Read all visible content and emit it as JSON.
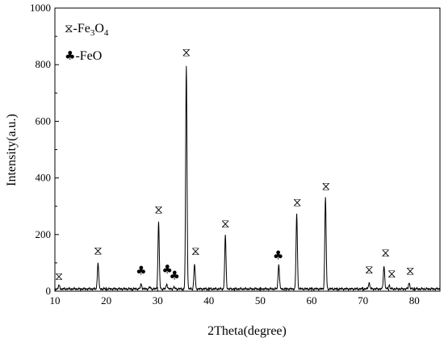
{
  "chart_data": {
    "type": "line",
    "xlabel": "2Theta(degree)",
    "ylabel": "Intensity(a.u.)",
    "xlim": [
      10,
      85
    ],
    "ylim": [
      0,
      1000
    ],
    "x_ticks": [
      10,
      20,
      30,
      40,
      50,
      60,
      70,
      80
    ],
    "y_ticks": [
      0,
      200,
      400,
      600,
      800,
      1000
    ],
    "grid": false,
    "legend_position": "top-left",
    "legend": {
      "fe3o4_symbol": "⧖",
      "fe3o4_label": "-Fe",
      "fe3o4_sub1": "3",
      "fe3o4_mid": "O",
      "fe3o4_sub2": "4",
      "feo_symbol": "♣",
      "feo_label": "-FeO"
    },
    "baseline": 8,
    "series": [
      {
        "peaks": [
          {
            "x": 10.8,
            "y": 20,
            "phase": "Fe3O4"
          },
          {
            "x": 18.4,
            "y": 100,
            "phase": "Fe3O4"
          },
          {
            "x": 26.8,
            "y": 25,
            "phase": "FeO"
          },
          {
            "x": 28.5,
            "y": 14,
            "phase": ""
          },
          {
            "x": 30.2,
            "y": 242,
            "phase": "Fe3O4"
          },
          {
            "x": 31.8,
            "y": 25,
            "phase": "FeO"
          },
          {
            "x": 33.2,
            "y": 14,
            "phase": "FeO"
          },
          {
            "x": 35.6,
            "y": 795,
            "phase": "Fe3O4"
          },
          {
            "x": 37.2,
            "y": 95,
            "phase": "Fe3O4"
          },
          {
            "x": 43.2,
            "y": 195,
            "phase": "Fe3O4"
          },
          {
            "x": 53.6,
            "y": 95,
            "phase": "FeO"
          },
          {
            "x": 57.1,
            "y": 272,
            "phase": "Fe3O4"
          },
          {
            "x": 62.7,
            "y": 330,
            "phase": "Fe3O4"
          },
          {
            "x": 71.2,
            "y": 30,
            "phase": "Fe3O4"
          },
          {
            "x": 74.1,
            "y": 90,
            "phase": "Fe3O4"
          },
          {
            "x": 75.1,
            "y": 22,
            "phase": "Fe3O4"
          },
          {
            "x": 79.0,
            "y": 30,
            "phase": "Fe3O4"
          }
        ]
      }
    ],
    "markers": [
      {
        "x": 10.8,
        "y": 40,
        "symbol": "⧖",
        "size": 14
      },
      {
        "x": 18.4,
        "y": 130,
        "symbol": "⧖",
        "size": 15
      },
      {
        "x": 26.8,
        "y": 58,
        "symbol": "♣",
        "size": 15
      },
      {
        "x": 30.2,
        "y": 275,
        "symbol": "⧖",
        "size": 15
      },
      {
        "x": 31.9,
        "y": 62,
        "symbol": "♣",
        "size": 15
      },
      {
        "x": 33.3,
        "y": 42,
        "symbol": "♣",
        "size": 15
      },
      {
        "x": 35.6,
        "y": 830,
        "symbol": "⧖",
        "size": 15
      },
      {
        "x": 37.4,
        "y": 128,
        "symbol": "⧖",
        "size": 15
      },
      {
        "x": 43.2,
        "y": 225,
        "symbol": "⧖",
        "size": 15
      },
      {
        "x": 53.5,
        "y": 112,
        "symbol": "♣",
        "size": 15
      },
      {
        "x": 57.2,
        "y": 300,
        "symbol": "⧖",
        "size": 15
      },
      {
        "x": 62.8,
        "y": 358,
        "symbol": "⧖",
        "size": 15
      },
      {
        "x": 71.2,
        "y": 62,
        "symbol": "⧖",
        "size": 15
      },
      {
        "x": 74.4,
        "y": 122,
        "symbol": "⧖",
        "size": 15
      },
      {
        "x": 75.6,
        "y": 48,
        "symbol": "⧖",
        "size": 15
      },
      {
        "x": 79.2,
        "y": 58,
        "symbol": "⧖",
        "size": 15
      }
    ]
  }
}
